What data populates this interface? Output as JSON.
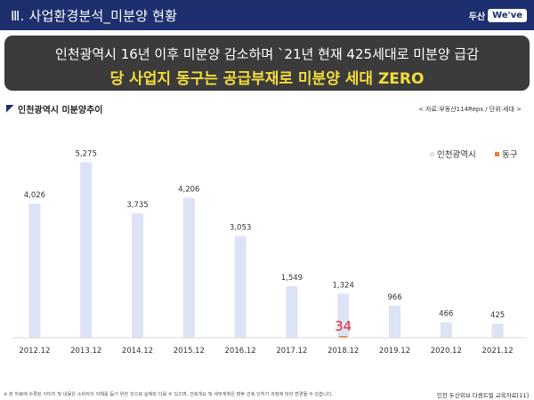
{
  "header": {
    "section_title": "Ⅲ. 사업환경분석_미분양 현황",
    "logo_prefix": "두산",
    "logo_badge": "We've"
  },
  "headline": {
    "line1": "인천광역시 16년 이후 미분양 감소하며 `21년 현재 425세대로 미분양 급감",
    "line2": "당 사업지 동구는 공급부재로 미분양 세대 ZERO"
  },
  "chart_heading": "인천광역시 미분양추이",
  "source_note": "< 자료:부동산114Reps / 단위:세대 >",
  "colors": {
    "header_bg": "#1d2f6e",
    "headline_bg": "#3b3b3b",
    "headline_accent": "#f2dc3c",
    "bar_primary": "#dde3f6",
    "bar_secondary": "#ef7c3a",
    "accent_label": "#e8262b"
  },
  "chart_data": {
    "type": "bar",
    "title": "인천광역시 미분양추이",
    "xlabel": "",
    "ylabel": "",
    "ylim": [
      0,
      5500
    ],
    "grid": false,
    "legend_position": "top-right",
    "categories": [
      "2012.12",
      "2013.12",
      "2014.12",
      "2015.12",
      "2016.12",
      "2017.12",
      "2018.12",
      "2019.12",
      "2020.12",
      "2021.12"
    ],
    "series": [
      {
        "name": "인천광역시",
        "values": [
          4026,
          5275,
          3735,
          4206,
          3053,
          1549,
          1324,
          966,
          466,
          425
        ],
        "labels": [
          "4,026",
          "5,275",
          "3,735",
          "4,206",
          "3,053",
          "1,549",
          "1,324",
          "966",
          "466",
          "425"
        ]
      },
      {
        "name": "동구",
        "values": [
          null,
          null,
          null,
          null,
          null,
          null,
          34,
          null,
          null,
          null
        ],
        "labels": [
          null,
          null,
          null,
          null,
          null,
          null,
          "34",
          null,
          null,
          null
        ]
      }
    ]
  },
  "footer": {
    "disclaimer": "※ 본 자료에 수록된 이미지 및 내용은 소비자의 이해를 돕기 위한 것으로 실제와 다를 수 있으며, 건축개요 및 세부계획은 향후 건축 인허가 과정에 따라 변경될 수 있습니다.",
    "page_label": "인천 두산위브 더센트럴 교육자료[11]"
  }
}
